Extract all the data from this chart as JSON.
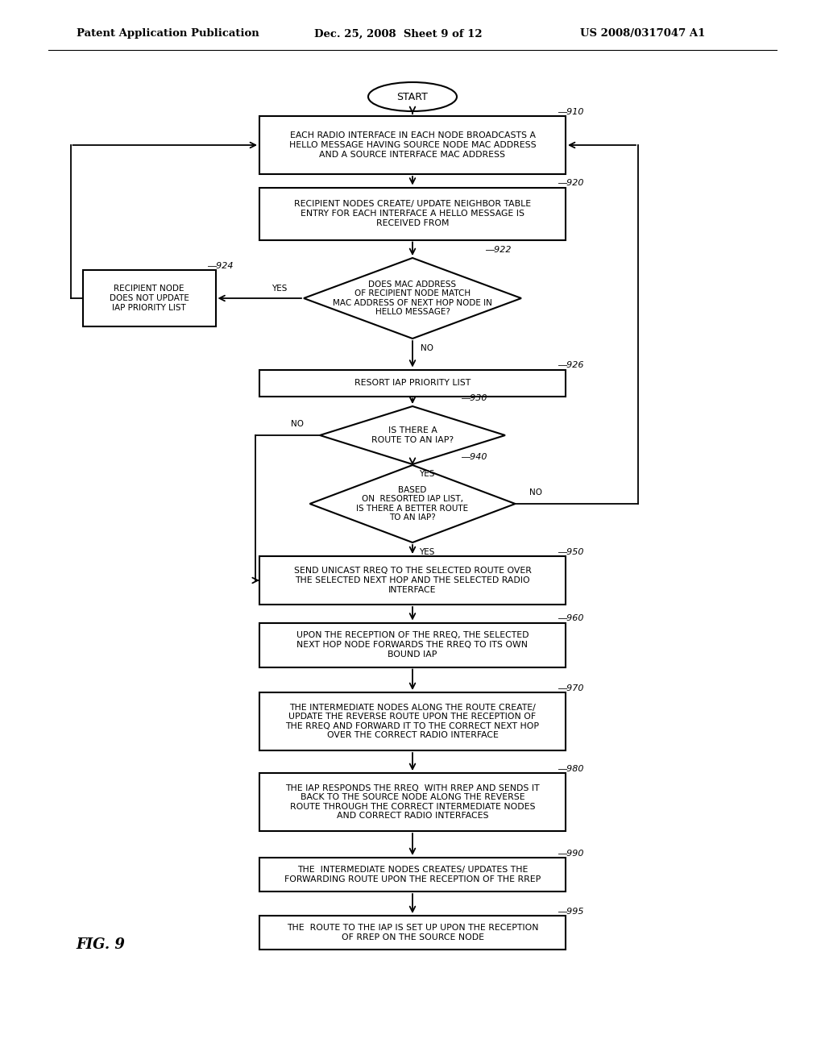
{
  "title_left": "Patent Application Publication",
  "title_center": "Dec. 25, 2008  Sheet 9 of 12",
  "title_right": "US 2008/0317047 A1",
  "fig_label": "FIG. 9",
  "bg_color": "#ffffff"
}
